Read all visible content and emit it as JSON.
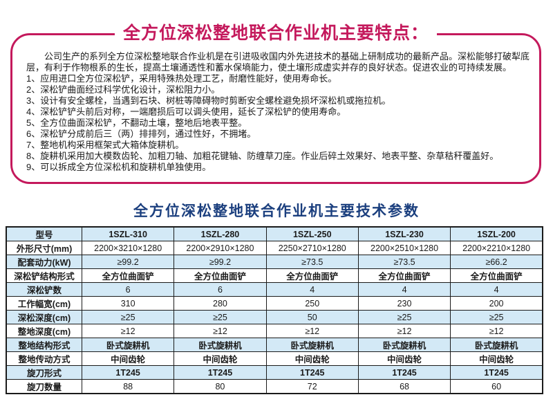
{
  "features": {
    "title": "全方位深松整地联合作业机主要特点：",
    "intro": "公司生产的系列全方位深松整地联合作业机是在引进吸收国内外先进技术的基础上研制成功的最新产品。深松能够打破犁底层，有利于作物根系的生长，提高土壤通透性和蓄水保墒能力，使土壤形成虚实并存的良好状态。促进农业的可持续发展。",
    "items": [
      "1、应用进口全方位深松铲，采用特殊热处理工艺，耐磨性能好，使用寿命长。",
      "2、深松铲曲面经过科学优化设计，深松阻力小。",
      "3、设计有安全螺栓，当遇到石块、树桩等障碍物时剪断安全螺栓避免损坏深松机或拖拉机。",
      "4、深松铲铲头前后对称，一端磨损后可以调头使用，延长了深松铲的使用寿命。",
      "5、全方位曲面深松铲，不翻动土壤，整地后地表平整。",
      "6、深松铲分成前后三（两）排排列，通过性好，不拥堵。",
      "7、整地机构采用框架式大箱体旋耕机。",
      "8、旋耕机采用加大模数齿轮、加粗刀轴、加粗花键轴、防缠草刀座。作业后碎土效果好、地表平整、杂草秸秆覆盖好。",
      "9、可以拆成全方位深松机和旋耕机单独使用。"
    ]
  },
  "specs": {
    "title": "全方位深松整地联合作业机主要技术参数",
    "rows": [
      {
        "label": "型号",
        "values": [
          "1SZL-310",
          "1SZL-280",
          "1SZL-250",
          "1SZL-230",
          "1SZL-200"
        ],
        "bold": true,
        "shaded": true
      },
      {
        "label": "外形尺寸(mm)",
        "values": [
          "2200×3210×1280",
          "2200×2910×1280",
          "2250×2710×1280",
          "2200×2510×1280",
          "2200×2210×1280"
        ],
        "bold": false,
        "shaded": false
      },
      {
        "label": "配套动力(kW)",
        "values": [
          "≥99.2",
          "≥99.2",
          "≥73.5",
          "≥73.5",
          "≥66.2"
        ],
        "bold": false,
        "shaded": true
      },
      {
        "label": "深松铲结构形式",
        "values": [
          "全方位曲面铲",
          "全方位曲面铲",
          "全方位曲面铲",
          "全方位曲面铲",
          "全方位曲面铲"
        ],
        "bold": true,
        "shaded": false
      },
      {
        "label": "深松铲数",
        "values": [
          "6",
          "6",
          "4",
          "4",
          "4"
        ],
        "bold": false,
        "shaded": true
      },
      {
        "label": "工作幅宽(cm)",
        "values": [
          "310",
          "280",
          "250",
          "230",
          "200"
        ],
        "bold": false,
        "shaded": false
      },
      {
        "label": "深松深度(cm)",
        "values": [
          "≥25",
          "≥25",
          "50",
          "≥25",
          "≥25"
        ],
        "bold": false,
        "shaded": true
      },
      {
        "label": "整地深度(cm)",
        "values": [
          "≥12",
          "≥12",
          "≥12",
          "≥12",
          "≥12"
        ],
        "bold": false,
        "shaded": false
      },
      {
        "label": "整地结构形式",
        "values": [
          "卧式旋耕机",
          "卧式旋耕机",
          "卧式旋耕机",
          "卧式旋耕机",
          "卧式旋耕机"
        ],
        "bold": true,
        "shaded": true
      },
      {
        "label": "整地传动方式",
        "values": [
          "中间齿轮",
          "中间齿轮",
          "中间齿轮",
          "中间齿轮",
          "中间齿轮"
        ],
        "bold": true,
        "shaded": false
      },
      {
        "label": "旋刀形式",
        "values": [
          "1T245",
          "1T245",
          "1T245",
          "1T245",
          "1T245"
        ],
        "bold": true,
        "shaded": true
      },
      {
        "label": "旋刀数量",
        "values": [
          "88",
          "80",
          "72",
          "68",
          "60"
        ],
        "bold": false,
        "shaded": false
      }
    ]
  },
  "colors": {
    "accent_crimson": "#c4195c",
    "title_blue": "#1b3f7e",
    "row_shade_blue": "#d3e9f6",
    "table_border": "#1a1a1a"
  }
}
